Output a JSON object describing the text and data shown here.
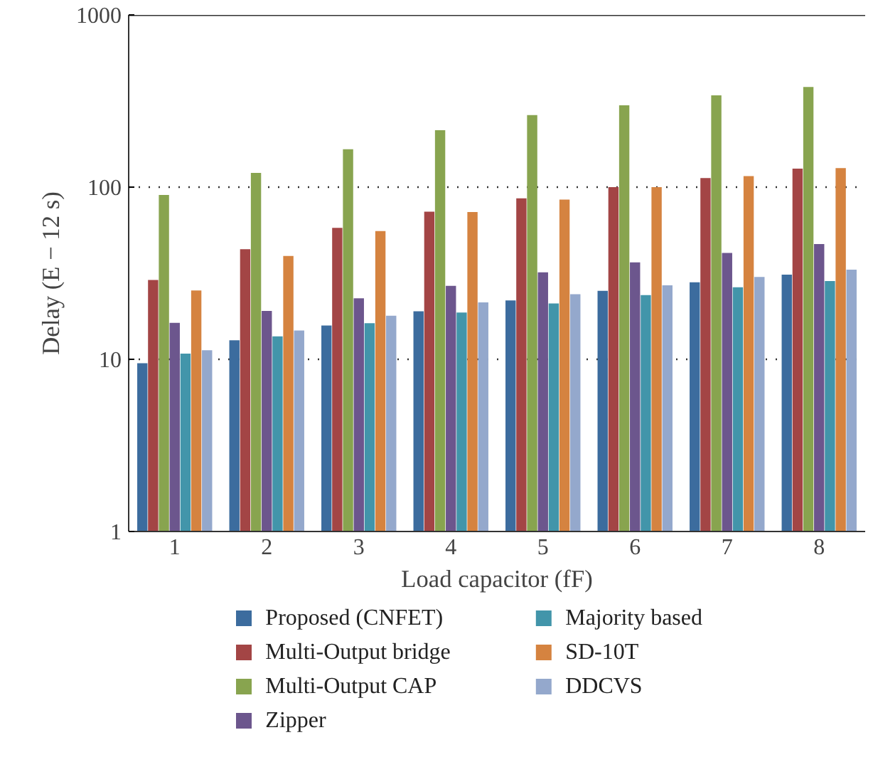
{
  "chart_data": {
    "type": "bar",
    "xlabel": "Load capacitor (fF)",
    "ylabel": "Delay (E − 12 s)",
    "categories": [
      "1",
      "2",
      "3",
      "4",
      "5",
      "6",
      "7",
      "8"
    ],
    "log": "y",
    "ylim": [
      1,
      1000
    ],
    "yticks": [
      1,
      10,
      100,
      1000
    ],
    "grid": "y",
    "legend": "bottom",
    "series": [
      {
        "name": "Proposed (CNFET)",
        "color": "#3c6c9e",
        "values": [
          9.5,
          12.9,
          15.7,
          19,
          22,
          25,
          28,
          31
        ]
      },
      {
        "name": "Multi-Output bridge",
        "color": "#a34545",
        "values": [
          28.9,
          43.6,
          58,
          72,
          86,
          100,
          113,
          128
        ]
      },
      {
        "name": "Multi-Output CAP",
        "color": "#88a44f",
        "values": [
          90,
          121,
          166,
          214,
          262,
          299,
          341,
          382
        ]
      },
      {
        "name": "Zipper",
        "color": "#6c568d",
        "values": [
          16.3,
          19.1,
          22.6,
          26.7,
          32,
          36.6,
          41.5,
          46.7
        ]
      },
      {
        "name": "Majority based",
        "color": "#4295aa",
        "values": [
          10.8,
          13.6,
          16.2,
          18.7,
          21.1,
          23.6,
          26.2,
          28.5
        ]
      },
      {
        "name": "SD-10T",
        "color": "#d58340",
        "values": [
          25.1,
          39.8,
          55.6,
          71.6,
          84.6,
          100,
          116,
          129
        ]
      },
      {
        "name": "DDCVS",
        "color": "#94a8cc",
        "values": [
          11.3,
          14.7,
          17.9,
          21.4,
          23.9,
          26.9,
          30.1,
          33.2
        ]
      }
    ]
  }
}
